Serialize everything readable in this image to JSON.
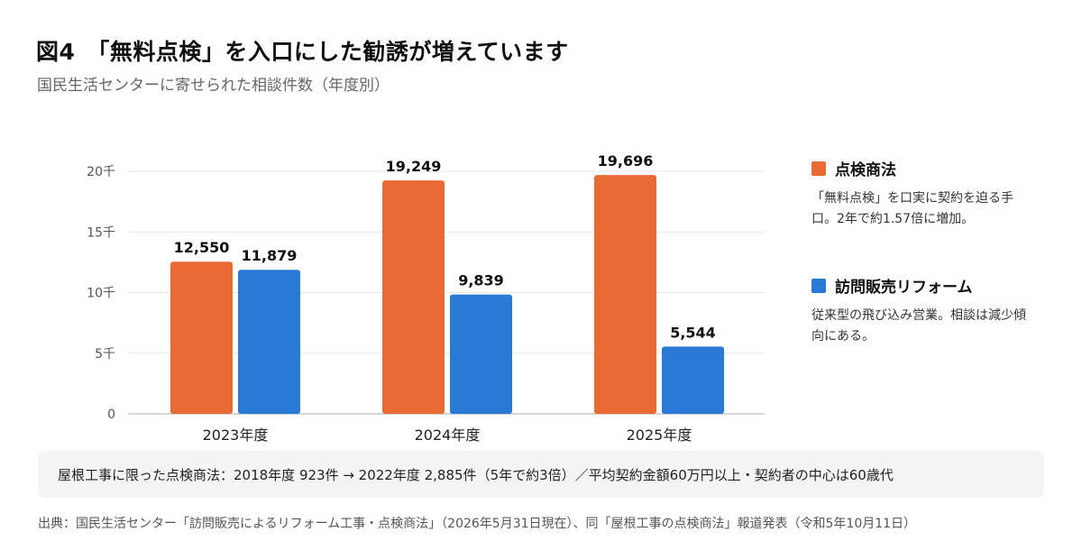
{
  "title": "図4　「無料点検」を入口にした勧誘が増えています",
  "subtitle": "国民生活センターに寄せられた相談件数（年度別）",
  "chart_data": {
    "type": "bar",
    "categories": [
      "2023年度",
      "2024年度",
      "2025年度"
    ],
    "series": [
      {
        "name": "点検商法",
        "color": "#e96a35",
        "values": [
          12550,
          19249,
          19696
        ],
        "labels": [
          "12,550",
          "19,249",
          "19,696"
        ]
      },
      {
        "name": "訪問販売リフォーム",
        "color": "#2b79d6",
        "values": [
          11879,
          9839,
          5544
        ],
        "labels": [
          "11,879",
          "9,839",
          "5,544"
        ]
      }
    ],
    "yticks": [
      {
        "value": 0,
        "label": "0"
      },
      {
        "value": 5000,
        "label": "5千"
      },
      {
        "value": 10000,
        "label": "10千"
      },
      {
        "value": 15000,
        "label": "15千"
      },
      {
        "value": 20000,
        "label": "20千"
      }
    ],
    "ylim": [
      0,
      20000
    ],
    "grid": true,
    "legend_position": "right"
  },
  "legend": [
    {
      "name": "点検商法",
      "color": "#e96a35",
      "desc": "「無料点検」を口実に契約を迫る手口。2年で約1.57倍に増加。"
    },
    {
      "name": "訪問販売リフォーム",
      "color": "#2b79d6",
      "desc": "従来型の飛び込み営業。相談は減少傾向にある。"
    }
  ],
  "note": "屋根工事に限った点検商法：2018年度 923件 → 2022年度 2,885件（5年で約3倍）／平均契約金額60万円以上・契約者の中心は60歳代",
  "source": "出典：国民生活センター「訪問販売によるリフォーム工事・点検商法」（2026年5月31日現在）、同「屋根工事の点検商法」報道発表（令和5年10月11日）"
}
